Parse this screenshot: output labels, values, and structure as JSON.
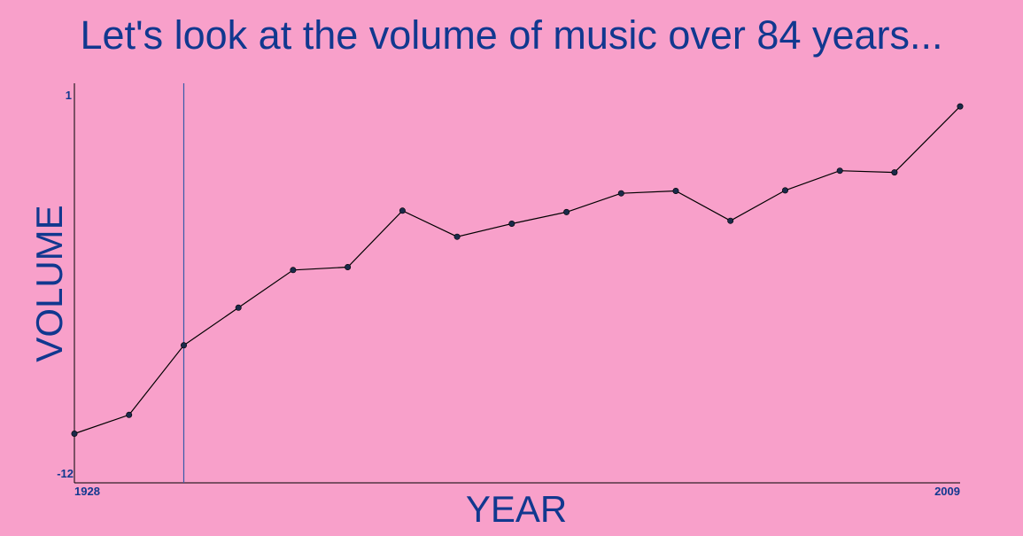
{
  "chart_data": {
    "type": "line",
    "title": "Let's look at the volume of music over 84 years...",
    "xlabel": "YEAR",
    "ylabel": "VOLUME",
    "x_tick_labels": [
      "1928",
      "2009"
    ],
    "y_tick_labels": [
      "-12",
      "1"
    ],
    "xlim": [
      1928,
      2009
    ],
    "ylim": [
      -12,
      1
    ],
    "grid": false,
    "legend": "none",
    "colors": {
      "background": "#f8a0ca",
      "text": "#11388f",
      "line": "#000000",
      "point": "#1a2a4a",
      "marker_line": "#3a5aa8"
    },
    "marker_year": 1938,
    "series": [
      {
        "x": [
          1928,
          1933,
          1938,
          1943,
          1948,
          1953,
          1958,
          1963,
          1968,
          1973,
          1978,
          1983,
          1988,
          1993,
          1998,
          2003,
          2009
        ],
        "values": [
          -10.7,
          -10.05,
          -7.65,
          -6.35,
          -5.05,
          -4.95,
          -3.0,
          -3.9,
          -3.45,
          -3.05,
          -2.4,
          -2.32,
          -3.35,
          -2.3,
          -1.62,
          -1.68,
          0.6
        ]
      }
    ]
  }
}
